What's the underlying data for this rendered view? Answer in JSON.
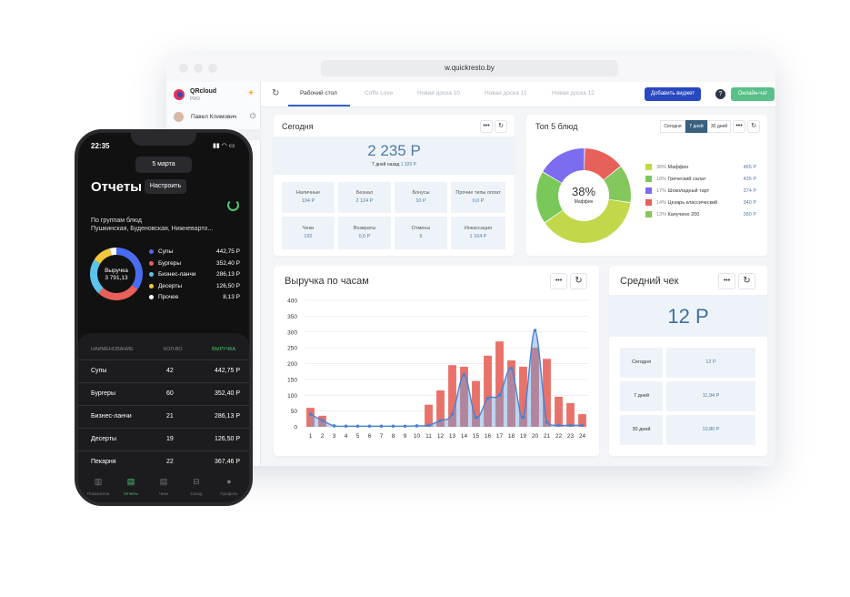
{
  "browser": {
    "url": "w.quickresto.by"
  },
  "sidebar": {
    "brand": "QRcloud",
    "brand_sub": "PRO",
    "user": "Павел Климович"
  },
  "tabs": [
    "Рабочий стол",
    "Coffe Love",
    "Новая доска 10",
    "Новая доска 11",
    "Новая доска 12"
  ],
  "buttons": {
    "add_widget": "Добавить виджет",
    "online_chat": "Онлайн-чат",
    "help": "?"
  },
  "today": {
    "title": "Сегодня",
    "amount": "2 235 Р",
    "sub_prefix": "7 дней назад",
    "sub_value": "1 320 Р",
    "cells": [
      {
        "label": "Наличные",
        "value": "104 Р"
      },
      {
        "label": "Безнал",
        "value": "2 124 Р"
      },
      {
        "label": "Бонусы",
        "value": "10 Р"
      },
      {
        "label": "Прочие типы оплат",
        "value": "0,0 Р"
      },
      {
        "label": "Чеки",
        "value": "192"
      },
      {
        "label": "Возвраты",
        "value": "0,0 Р"
      },
      {
        "label": "Отмены",
        "value": "6"
      },
      {
        "label": "Инкассация",
        "value": "1 164 Р"
      }
    ]
  },
  "top5": {
    "title": "Топ 5 блюд",
    "periods": [
      "Сегодня",
      "7 дней",
      "30 дней"
    ],
    "center_pct": "38%",
    "center_label": "Маффин",
    "items": [
      {
        "pct": "38%",
        "name": "Маффин",
        "value": "465 Р",
        "color": "#c2d84a",
        "share": 38
      },
      {
        "pct": "18%",
        "name": "Греческий салат",
        "value": "435 Р",
        "color": "#7ac85a",
        "share": 18
      },
      {
        "pct": "17%",
        "name": "Шоколадный тарт",
        "value": "374 Р",
        "color": "#7b6cf0",
        "share": 17
      },
      {
        "pct": "14%",
        "name": "Цезарь классический",
        "value": "340 Р",
        "color": "#e8605a",
        "share": 14
      },
      {
        "pct": "13%",
        "name": "Капучино 200",
        "value": "280 Р",
        "color": "#84c75c",
        "share": 13
      }
    ]
  },
  "hourly": {
    "title": "Выручка по часам"
  },
  "chart_data": {
    "type": "bar",
    "categories": [
      "1",
      "2",
      "3",
      "4",
      "5",
      "6",
      "7",
      "8",
      "9",
      "10",
      "11",
      "12",
      "13",
      "14",
      "15",
      "16",
      "17",
      "18",
      "19",
      "20",
      "21",
      "22",
      "23",
      "24"
    ],
    "series": [
      {
        "values": [
          60,
          35,
          0,
          0,
          0,
          0,
          0,
          0,
          0,
          0,
          70,
          115,
          195,
          190,
          145,
          225,
          270,
          210,
          190,
          250,
          215,
          95,
          75,
          40
        ]
      },
      {
        "values": [
          40,
          20,
          3,
          2,
          2,
          2,
          2,
          2,
          2,
          3,
          5,
          20,
          40,
          165,
          30,
          90,
          100,
          185,
          30,
          305,
          15,
          5,
          5,
          5
        ]
      }
    ],
    "ylim": [
      0,
      400
    ],
    "yticks": [
      "0",
      "50",
      "100",
      "150",
      "200",
      "250",
      "300",
      "350",
      "400"
    ]
  },
  "avg_check": {
    "title": "Средний чек",
    "amount": "12 Р",
    "rows": [
      {
        "label": "Сегодня",
        "value": "12 Р"
      },
      {
        "label": "7 дней",
        "value": "11,94 Р"
      },
      {
        "label": "30 дней",
        "value": "10,80 Р"
      }
    ]
  },
  "phone": {
    "time": "22:35",
    "date": "5 марта",
    "title": "Отчеты",
    "settings": "Настроить",
    "group_label": "По группам блюд",
    "group_locations": "Пушкинская, Буденовская, Нижневарто...",
    "donut_label": "Выручка",
    "donut_value": "3 791,13",
    "legend": [
      {
        "name": "Супы",
        "value": "442,75 Р",
        "color": "#4a6cf0"
      },
      {
        "name": "Бургеры",
        "value": "352,40 Р",
        "color": "#e8605a"
      },
      {
        "name": "Бизнес-ланчи",
        "value": "286,13 Р",
        "color": "#5bc4ec"
      },
      {
        "name": "Десерты",
        "value": "126,50 Р",
        "color": "#f0c840"
      },
      {
        "name": "Прочее",
        "value": "8,13 Р",
        "color": "#ffffff"
      }
    ],
    "table_headers": [
      "НАИМЕНОВАНИЕ",
      "КОЛ-ВО",
      "ВЫРУЧКА"
    ],
    "rows": [
      {
        "name": "Супы",
        "qty": "42",
        "rev": "442,75 Р"
      },
      {
        "name": "Бургеры",
        "qty": "60",
        "rev": "352,40 Р"
      },
      {
        "name": "Бизнес-ланчи",
        "qty": "21",
        "rev": "286,13 Р"
      },
      {
        "name": "Десерты",
        "qty": "19",
        "rev": "126,50 Р"
      },
      {
        "name": "Пекарня",
        "qty": "22",
        "rev": "367,46 Р"
      }
    ],
    "nav": [
      "Показатели",
      "Отчеты",
      "Чеки",
      "Склад",
      "Профиль"
    ]
  }
}
